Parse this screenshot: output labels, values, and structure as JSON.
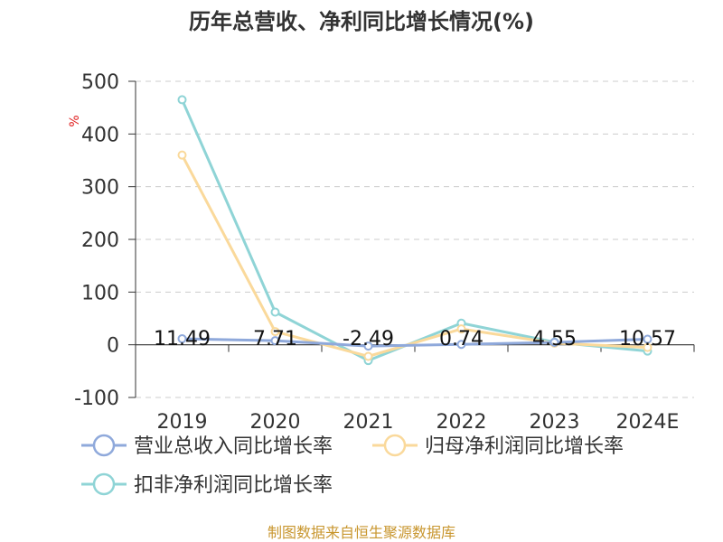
{
  "chart_data": {
    "type": "line",
    "title": "历年总营收、净利同比增长情况(%)",
    "ylabel": "%",
    "categories": [
      "2019",
      "2020",
      "2021",
      "2022",
      "2023",
      "2024E"
    ],
    "ylim": [
      -100,
      500
    ],
    "yticks": [
      -100,
      0,
      100,
      200,
      300,
      400,
      500
    ],
    "grid": true,
    "legend_position": "bottom",
    "series": [
      {
        "name": "营业总收入同比增长率",
        "color": "#8fa9db",
        "values": [
          11.49,
          7.71,
          -2.49,
          0.74,
          4.55,
          10.57
        ],
        "labels": [
          "11.49",
          "7.71",
          "-2.49",
          "0.74",
          "4.55",
          "10.57"
        ]
      },
      {
        "name": "归母净利润同比增长率",
        "color": "#fad99b",
        "values": [
          360,
          25,
          -22,
          30,
          3,
          -5
        ]
      },
      {
        "name": "扣非净利润同比增长率",
        "color": "#8fd4d6",
        "values": [
          465,
          62,
          -30,
          41,
          5,
          -12
        ]
      }
    ]
  },
  "source": "制图数据来自恒生聚源数据库"
}
